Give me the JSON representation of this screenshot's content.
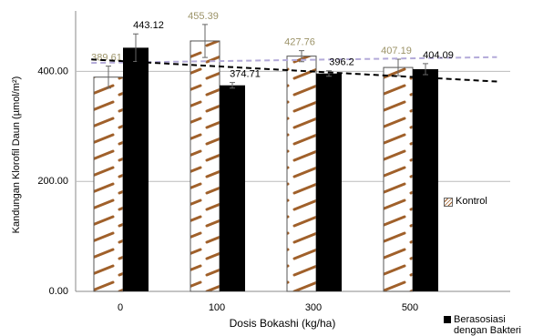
{
  "chart_data": {
    "type": "bar",
    "x_label": "Dosis Bokashi (kg/ha)",
    "y_label": "Kandungan Klorofil Daun (µmol/m²)",
    "categories": [
      "0",
      "100",
      "300",
      "500"
    ],
    "series": [
      {
        "name": "Kontrol",
        "color": "#a0602a",
        "label_color": "#9c9368",
        "trend_color": "#b3aad9",
        "pattern": true,
        "values": [
          389.61,
          455.39,
          427.76,
          407.19
        ],
        "errors": [
          20,
          30,
          10,
          15
        ]
      },
      {
        "name": "Berasosiasi dengan Bakteri",
        "color": "#000000",
        "label_color": "#000000",
        "trend_color": "#000000",
        "pattern": false,
        "values": [
          443.12,
          374.71,
          396.2,
          404.09
        ],
        "errors": [
          25,
          5,
          5,
          10
        ]
      }
    ],
    "trendline": true,
    "ylim": [
      0,
      510
    ],
    "yticks": [
      {
        "value": 0,
        "label": "0.00"
      },
      {
        "value": 200,
        "label": "200.00"
      },
      {
        "value": 400,
        "label": "400.00"
      }
    ],
    "grid": true
  }
}
